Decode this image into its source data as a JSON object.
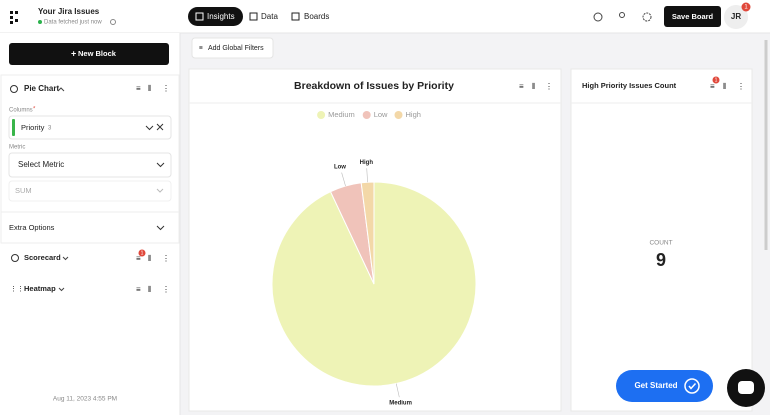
{
  "header": {
    "title": "Your Jira Issues",
    "status": "Data fetched just now",
    "tabs": [
      "Insights",
      "Data",
      "Boards"
    ],
    "save_button": "Save Board",
    "avatar": "JR",
    "avatar_badge": "1"
  },
  "sidebar": {
    "new_block": "New Block",
    "pie_block": {
      "title": "Pie Chart",
      "columns_label": "Columns",
      "required_mark": "*",
      "column": "Priority",
      "column_count": "3",
      "metric_label": "Metric",
      "metric_placeholder": "Select Metric",
      "aggregation": "SUM",
      "extra_options": "Extra Options"
    },
    "other_blocks": [
      {
        "title": "Scorecard",
        "badge": "1"
      },
      {
        "title": "Heatmap"
      }
    ],
    "timestamp": "Aug 11, 2023 4:55 PM"
  },
  "toolbar": {
    "filters_button": "Add Global Filters"
  },
  "chart_data": {
    "type": "pie",
    "title": "Breakdown of Issues by Priority",
    "categories": [
      "Medium",
      "Low",
      "High"
    ],
    "values": [
      93,
      5,
      2
    ],
    "colors": [
      "#eef3b6",
      "#f0c3ba",
      "#f3d8a8"
    ],
    "legend": "top"
  },
  "scorecard": {
    "title": "High Priority Issues Count",
    "badge": "1",
    "label": "COUNT",
    "value": "9"
  },
  "help": {
    "get_started": "Get Started"
  }
}
